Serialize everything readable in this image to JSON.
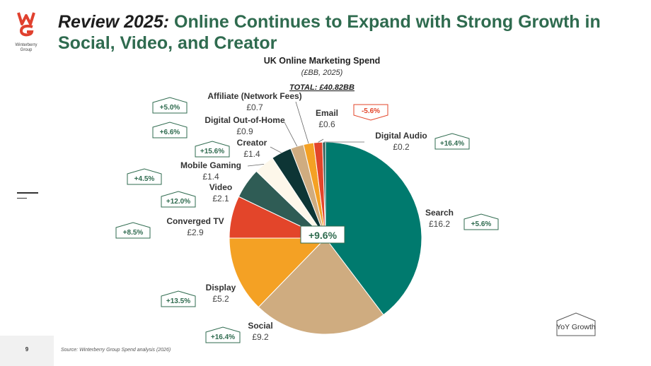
{
  "logo": {
    "icon": "wg-monogram-icon",
    "text": "Winterberry\nGroup",
    "color": "#e0412f"
  },
  "title": {
    "lead": "Review 2025:",
    "main": " Online Continues to Expand with Strong Growth in Social, Video, and Creator"
  },
  "footer": {
    "page": "9",
    "source": "Source: Winterberry Group Spend analysis (2026)"
  },
  "legend_note": {
    "text": "YoY Growth"
  },
  "chart_data": {
    "type": "pie",
    "title": "UK Online Marketing Spend",
    "subtitle": "(£BB, 2025)",
    "total_label": "TOTAL: £40.82BB",
    "center_label": "+9.6%",
    "categories": [
      "Search",
      "Social",
      "Display",
      "Converged TV",
      "Video",
      "Mobile Gaming",
      "Creator",
      "Digital Out-of-Home",
      "Affiliate (Network Fees)",
      "Email",
      "Digital Audio"
    ],
    "values": [
      16.2,
      9.2,
      5.2,
      2.9,
      2.1,
      1.4,
      1.4,
      0.9,
      0.7,
      0.6,
      0.2
    ],
    "value_labels": [
      "£16.2",
      "£9.2",
      "£5.2",
      "£2.9",
      "£2.1",
      "£1.4",
      "£1.4",
      "£0.9",
      "£0.7",
      "£0.6",
      "£0.2"
    ],
    "yoy_growth": [
      "+5.6%",
      "+16.4%",
      "+13.5%",
      "+8.5%",
      "+12.0%",
      "+4.5%",
      "+15.6%",
      "+6.6%",
      "+5.0%",
      "-5.6%",
      "+16.4%"
    ],
    "colors": [
      "#007a6e",
      "#cfac80",
      "#f4a124",
      "#e3452a",
      "#2f5c55",
      "#fdf7ea",
      "#0d3535",
      "#cfac80",
      "#f4a124",
      "#e3452a",
      "#2f5c55"
    ],
    "positive_color": "#2f6b4f",
    "negative_color": "#e3452a"
  }
}
